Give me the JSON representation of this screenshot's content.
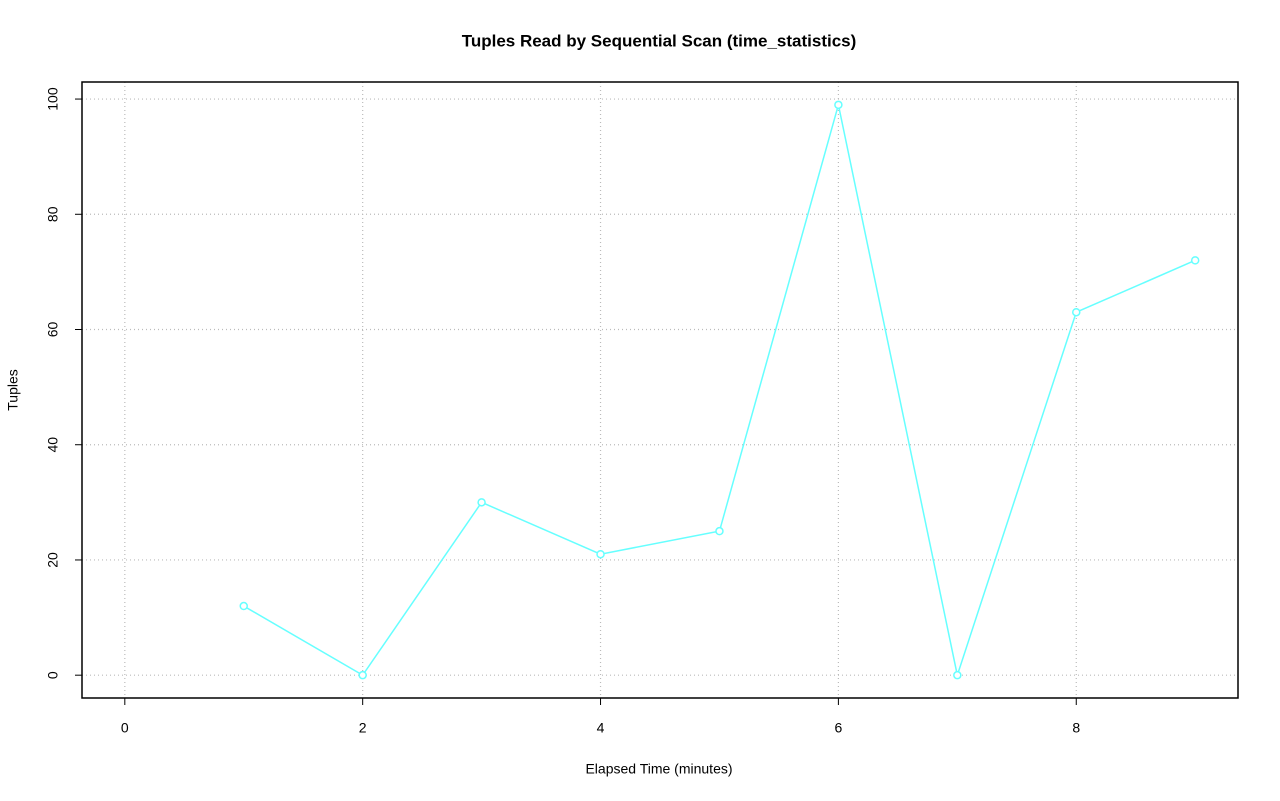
{
  "chart_data": {
    "type": "line",
    "title": "Tuples Read by Sequential Scan (time_statistics)",
    "xlabel": "Elapsed Time (minutes)",
    "ylabel": "Tuples",
    "x": [
      1,
      2,
      3,
      4,
      5,
      6,
      7,
      8,
      9
    ],
    "values": [
      12,
      0,
      30,
      21,
      25,
      99,
      0,
      63,
      72
    ],
    "color": "#66ffff",
    "xlim": [
      -0.36,
      9.36
    ],
    "xticks": [
      0,
      2,
      4,
      6,
      8
    ],
    "ylim": [
      -3.96,
      102.96
    ],
    "yticks": [
      0,
      20,
      40,
      60,
      80,
      100
    ],
    "grid": true
  }
}
